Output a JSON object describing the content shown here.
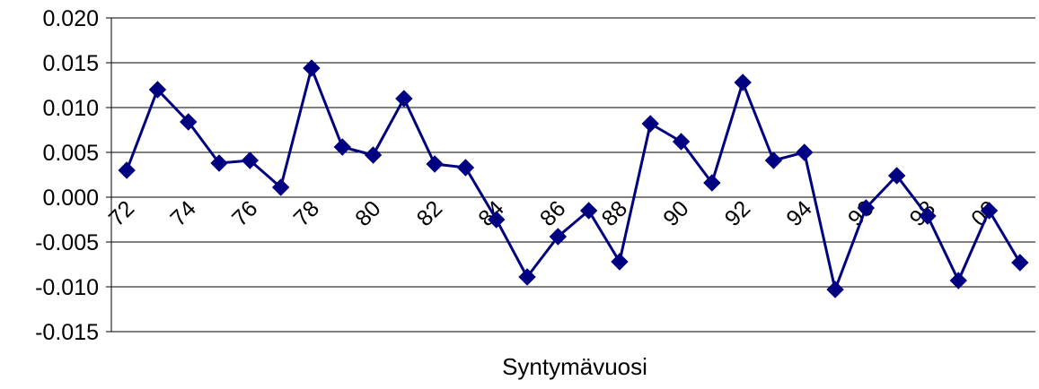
{
  "chart_data": {
    "type": "line",
    "title": "",
    "xlabel": "Syntymävuosi",
    "ylabel": "",
    "ylim": [
      -0.015,
      0.02
    ],
    "y_ticks": [
      "0.020",
      "0.015",
      "0.010",
      "0.005",
      "0.000",
      "-0.005",
      "-0.010",
      "-0.015"
    ],
    "grid": "horizontal",
    "legend": "none",
    "x_tick_labels": [
      "72",
      "74",
      "76",
      "78",
      "80",
      "82",
      "84",
      "86",
      "88",
      "90",
      "92",
      "94",
      "96",
      "98",
      "00"
    ],
    "x": [
      1972,
      1973,
      1974,
      1975,
      1976,
      1977,
      1978,
      1979,
      1980,
      1981,
      1982,
      1983,
      1984,
      1985,
      1986,
      1987,
      1988,
      1989,
      1990,
      1991,
      1992,
      1993,
      1994,
      1995,
      1996,
      1997,
      1998,
      1999,
      2000,
      2001
    ],
    "series": [
      {
        "color": "#000080",
        "marker": "diamond",
        "values": [
          0.003,
          0.012,
          0.0084,
          0.0038,
          0.0041,
          0.0011,
          0.0144,
          0.0056,
          0.0047,
          0.011,
          0.0037,
          0.0033,
          -0.0025,
          -0.0089,
          -0.0044,
          -0.0015,
          -0.0072,
          0.0082,
          0.0062,
          0.0016,
          0.0128,
          0.0041,
          0.005,
          -0.0103,
          -0.0012,
          0.0024,
          -0.0021,
          -0.0093,
          -0.0015,
          -0.0073
        ]
      }
    ]
  }
}
